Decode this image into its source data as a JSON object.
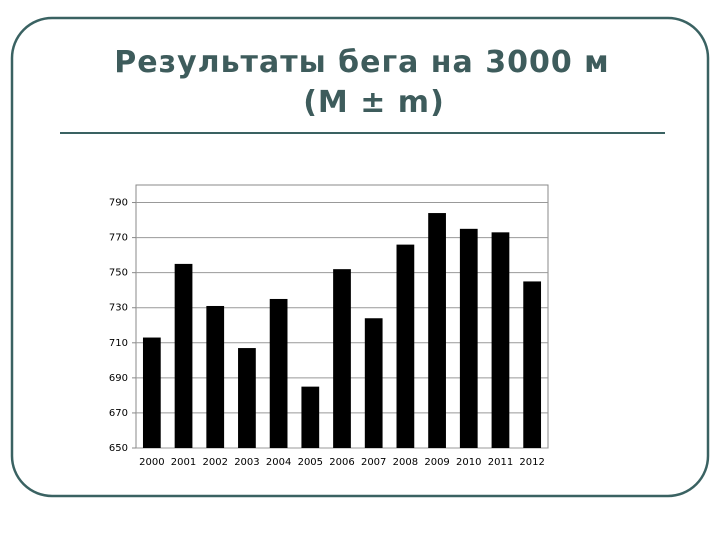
{
  "chart_data": {
    "type": "bar",
    "title": "Результаты бега на 3000 м",
    "subtitle": "(M ± m)",
    "categories": [
      "2000",
      "2001",
      "2002",
      "2003",
      "2004",
      "2005",
      "2006",
      "2007",
      "2008",
      "2009",
      "2010",
      "2011",
      "2012"
    ],
    "values": [
      713,
      755,
      731,
      707,
      735,
      685,
      752,
      724,
      766,
      784,
      775,
      773,
      745
    ],
    "color": "#000000",
    "ylim": [
      650,
      800
    ],
    "yticks": [
      650,
      670,
      690,
      710,
      730,
      750,
      770,
      790
    ],
    "grid": true
  }
}
